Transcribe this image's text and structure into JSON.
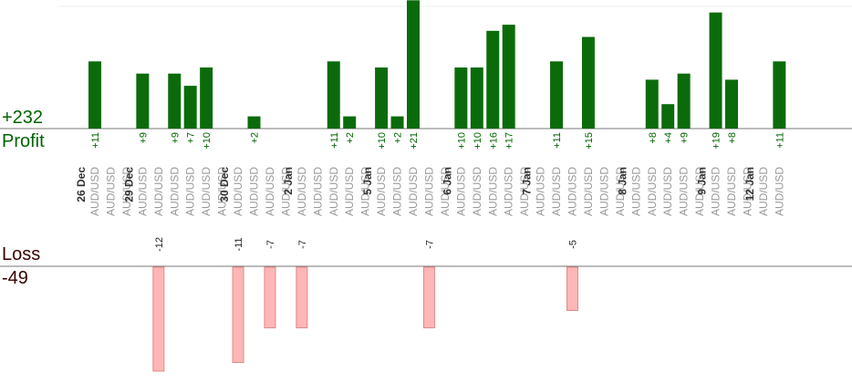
{
  "summary": {
    "profit_total": "+232",
    "profit_label": "Profit",
    "loss_label": "Loss",
    "loss_total": "-49"
  },
  "colors": {
    "profit_bar": "#0b6b0b",
    "profit_text": "#006400",
    "loss_bar": "#ffb6b6",
    "loss_bar_edge": "#e08a8a",
    "axis_line": "#777777",
    "pair_text": "#999999",
    "date_text": "#333333"
  },
  "chart_data": {
    "type": "bar",
    "slots": [
      {
        "pair": "AUD/USD",
        "date": "26 Dec",
        "value": 11,
        "label": "+11"
      },
      {
        "pair": "AUD/USD"
      },
      {
        "pair": "AUD/USD"
      },
      {
        "pair": "AUD/USD",
        "date": "29 Dec",
        "value": 9,
        "label": "+9"
      },
      {
        "pair": "AUD/USD",
        "value": -12,
        "label": "-12"
      },
      {
        "pair": "AUD/USD",
        "value": 9,
        "label": "+9"
      },
      {
        "pair": "AUD/USD",
        "value": 7,
        "label": "+7"
      },
      {
        "pair": "AUD/USD",
        "value": 10,
        "label": "+10"
      },
      {
        "pair": "AUD/USD"
      },
      {
        "pair": "AUD/USD",
        "date": "30 Dec",
        "value": -11,
        "label": "-11"
      },
      {
        "pair": "AUD/USD",
        "value": 2,
        "label": "+2"
      },
      {
        "pair": "AUD/USD",
        "value": -7,
        "label": "-7"
      },
      {
        "pair": "AUD/USD"
      },
      {
        "pair": "AUD/USD",
        "date": "2 Jan",
        "value": -7,
        "label": "-7"
      },
      {
        "pair": "AUD/USD"
      },
      {
        "pair": "AUD/USD",
        "value": 11,
        "label": "+11"
      },
      {
        "pair": "AUD/USD",
        "value": 2,
        "label": "+2"
      },
      {
        "pair": "AUD/USD"
      },
      {
        "pair": "AUD/USD",
        "date": "5 Jan",
        "value": 10,
        "label": "+10"
      },
      {
        "pair": "AUD/USD",
        "value": 2,
        "label": "+2"
      },
      {
        "pair": "AUD/USD",
        "value": 21,
        "label": "+21"
      },
      {
        "pair": "AUD/USD",
        "value": -7,
        "label": "-7"
      },
      {
        "pair": "AUD/USD"
      },
      {
        "pair": "AUD/USD",
        "date": "6 Jan",
        "value": 10,
        "label": "+10"
      },
      {
        "pair": "AUD/USD",
        "value": 10,
        "label": "+10"
      },
      {
        "pair": "AUD/USD",
        "value": 16,
        "label": "+16"
      },
      {
        "pair": "AUD/USD",
        "value": 17,
        "label": "+17"
      },
      {
        "pair": "AUD/USD"
      },
      {
        "pair": "AUD/USD",
        "date": "7 Jan"
      },
      {
        "pair": "AUD/USD",
        "value": 11,
        "label": "+11"
      },
      {
        "pair": "AUD/USD",
        "value": -5,
        "label": "-5"
      },
      {
        "pair": "AUD/USD",
        "value": 15,
        "label": "+15"
      },
      {
        "pair": "AUD/USD"
      },
      {
        "pair": "AUD/USD"
      },
      {
        "pair": "AUD/USD",
        "date": "8 Jan"
      },
      {
        "pair": "AUD/USD",
        "value": 8,
        "label": "+8"
      },
      {
        "pair": "AUD/USD",
        "value": 4,
        "label": "+4"
      },
      {
        "pair": "AUD/USD",
        "value": 9,
        "label": "+9"
      },
      {
        "pair": "AUD/USD"
      },
      {
        "pair": "AUD/USD",
        "date": "9 Jan",
        "value": 19,
        "label": "+19"
      },
      {
        "pair": "AUD/USD",
        "value": 8,
        "label": "+8"
      },
      {
        "pair": "AUD/USD"
      },
      {
        "pair": "AUD/USD",
        "date": "12 Jan"
      },
      {
        "pair": "AUD/USD",
        "value": 11,
        "label": "+11"
      }
    ]
  }
}
